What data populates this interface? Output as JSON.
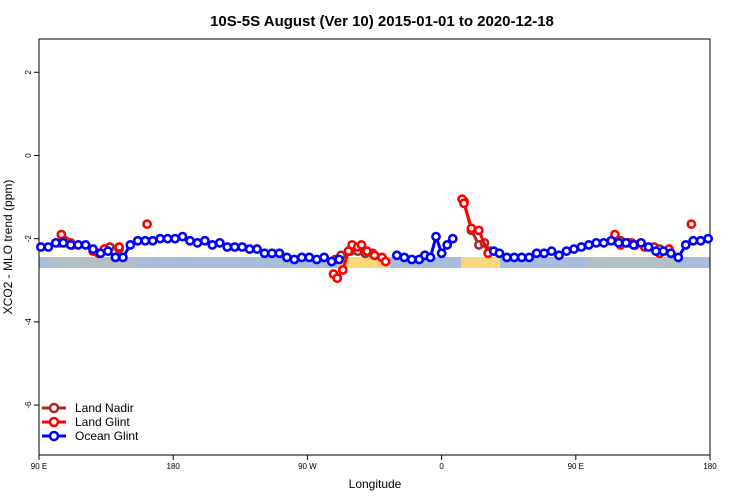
{
  "chart_data": {
    "type": "line",
    "title": "10S-5S August (Ver 10)   2015-01-01 to 2020-12-18",
    "xlabel": "Longitude",
    "ylabel": "XCO2 - MLO trend (ppm)",
    "xlim": [
      90,
      450
    ],
    "ylim": [
      -7.2,
      2.8
    ],
    "x_ticks": [
      {
        "value": 90,
        "label": "90 E"
      },
      {
        "value": 162,
        "label": "180"
      },
      {
        "value": 234,
        "label": "90 W"
      },
      {
        "value": 306,
        "label": "0"
      },
      {
        "value": 378,
        "label": "90 E"
      },
      {
        "value": 450,
        "label": "180"
      }
    ],
    "y_ticks": [
      2,
      0,
      -2,
      -4,
      -6
    ],
    "legend": {
      "position": "bottom-left",
      "entries": [
        {
          "name": "Land Nadir",
          "color": "#a52a2a"
        },
        {
          "name": "Land Glint",
          "color": "#ff0000"
        },
        {
          "name": "Ocean Glint",
          "color": "#0000ff"
        }
      ]
    },
    "series": [
      {
        "name": "Land Nadir",
        "color": "#a52a2a",
        "segments": [
          [
            [
              101,
              -2.1
            ],
            [
              104,
              -2.05
            ],
            [
              107,
              -2.1
            ]
          ],
          [
            [
              128,
              -2.2
            ],
            [
              133,
              -2.25
            ]
          ],
          [
            [
              249,
              -2.5
            ],
            [
              252,
              -2.4
            ]
          ],
          [
            [
              257,
              -2.3
            ],
            [
              261,
              -2.3
            ],
            [
              265,
              -2.35
            ],
            [
              269,
              -2.35
            ]
          ],
          [
            [
              318,
              -1.1
            ],
            [
              322,
              -1.8
            ],
            [
              326,
              -2.15
            ],
            [
              329,
              -2.1
            ],
            [
              332,
              -2.3
            ]
          ],
          [
            [
              402,
              -2.05
            ],
            [
              408,
              -2.1
            ]
          ],
          [
            [
              420,
              -2.2
            ],
            [
              423,
              -2.25
            ]
          ]
        ]
      },
      {
        "name": "Land Glint",
        "color": "#ff0000",
        "segments": [
          [
            [
              102,
              -1.9
            ],
            [
              105,
              -2.1
            ],
            [
              108,
              -2.15
            ]
          ],
          [
            [
              119,
              -2.3
            ],
            [
              122,
              -2.35
            ],
            [
              125,
              -2.25
            ]
          ],
          [
            [
              133,
              -2.2
            ]
          ],
          [
            [
              148,
              -1.65
            ]
          ],
          [
            [
              248,
              -2.85
            ],
            [
              250,
              -2.95
            ],
            [
              253,
              -2.75
            ],
            [
              256,
              -2.3
            ],
            [
              258,
              -2.15
            ],
            [
              261,
              -2.2
            ],
            [
              263,
              -2.15
            ],
            [
              266,
              -2.3
            ],
            [
              270,
              -2.4
            ],
            [
              274,
              -2.45
            ],
            [
              276,
              -2.55
            ]
          ],
          [
            [
              317,
              -1.05
            ],
            [
              318,
              -1.15
            ],
            [
              322,
              -1.75
            ],
            [
              326,
              -1.8
            ],
            [
              331,
              -2.35
            ]
          ],
          [
            [
              399,
              -1.9
            ],
            [
              402,
              -2.15
            ],
            [
              406,
              -2.1
            ],
            [
              410,
              -2.15
            ],
            [
              415,
              -2.2
            ]
          ],
          [
            [
              423,
              -2.35
            ],
            [
              428,
              -2.25
            ]
          ],
          [
            [
              440,
              -1.65
            ]
          ]
        ]
      },
      {
        "name": "Ocean Glint",
        "color": "#0000ff",
        "segments": [
          [
            [
              91,
              -2.2
            ],
            [
              95,
              -2.2
            ],
            [
              99,
              -2.1
            ],
            [
              103,
              -2.1
            ],
            [
              107,
              -2.15
            ],
            [
              111,
              -2.15
            ],
            [
              115,
              -2.15
            ],
            [
              119,
              -2.25
            ],
            [
              123,
              -2.35
            ],
            [
              127,
              -2.3
            ],
            [
              131,
              -2.45
            ],
            [
              135,
              -2.45
            ],
            [
              139,
              -2.15
            ],
            [
              143,
              -2.05
            ],
            [
              147,
              -2.05
            ],
            [
              151,
              -2.05
            ],
            [
              155,
              -2.0
            ],
            [
              159,
              -2.0
            ],
            [
              163,
              -2.0
            ],
            [
              167,
              -1.95
            ],
            [
              171,
              -2.05
            ],
            [
              175,
              -2.1
            ],
            [
              179,
              -2.05
            ],
            [
              183,
              -2.15
            ],
            [
              187,
              -2.1
            ],
            [
              191,
              -2.2
            ],
            [
              195,
              -2.2
            ],
            [
              199,
              -2.2
            ],
            [
              203,
              -2.25
            ],
            [
              207,
              -2.25
            ],
            [
              211,
              -2.35
            ],
            [
              215,
              -2.35
            ],
            [
              219,
              -2.35
            ],
            [
              223,
              -2.45
            ],
            [
              227,
              -2.5
            ],
            [
              231,
              -2.45
            ],
            [
              235,
              -2.45
            ],
            [
              239,
              -2.5
            ],
            [
              243,
              -2.45
            ],
            [
              247,
              -2.55
            ],
            [
              251,
              -2.5
            ]
          ],
          [
            [
              282,
              -2.4
            ],
            [
              286,
              -2.45
            ],
            [
              290,
              -2.5
            ],
            [
              294,
              -2.5
            ],
            [
              297,
              -2.4
            ],
            [
              300,
              -2.45
            ],
            [
              303,
              -1.95
            ],
            [
              306,
              -2.35
            ],
            [
              309,
              -2.15
            ],
            [
              312,
              -2.0
            ]
          ],
          [
            [
              334,
              -2.3
            ],
            [
              337,
              -2.35
            ],
            [
              341,
              -2.45
            ],
            [
              345,
              -2.45
            ],
            [
              349,
              -2.45
            ],
            [
              353,
              -2.45
            ],
            [
              357,
              -2.35
            ],
            [
              361,
              -2.35
            ],
            [
              365,
              -2.3
            ],
            [
              369,
              -2.4
            ],
            [
              373,
              -2.3
            ],
            [
              377,
              -2.25
            ],
            [
              381,
              -2.2
            ],
            [
              385,
              -2.15
            ],
            [
              389,
              -2.1
            ],
            [
              393,
              -2.1
            ],
            [
              397,
              -2.05
            ],
            [
              401,
              -2.1
            ],
            [
              405,
              -2.1
            ],
            [
              409,
              -2.15
            ],
            [
              413,
              -2.1
            ],
            [
              417,
              -2.2
            ],
            [
              421,
              -2.3
            ],
            [
              425,
              -2.3
            ],
            [
              429,
              -2.35
            ],
            [
              433,
              -2.45
            ],
            [
              437,
              -2.15
            ],
            [
              441,
              -2.05
            ],
            [
              445,
              -2.05
            ],
            [
              449,
              -2.0
            ]
          ]
        ]
      }
    ]
  }
}
